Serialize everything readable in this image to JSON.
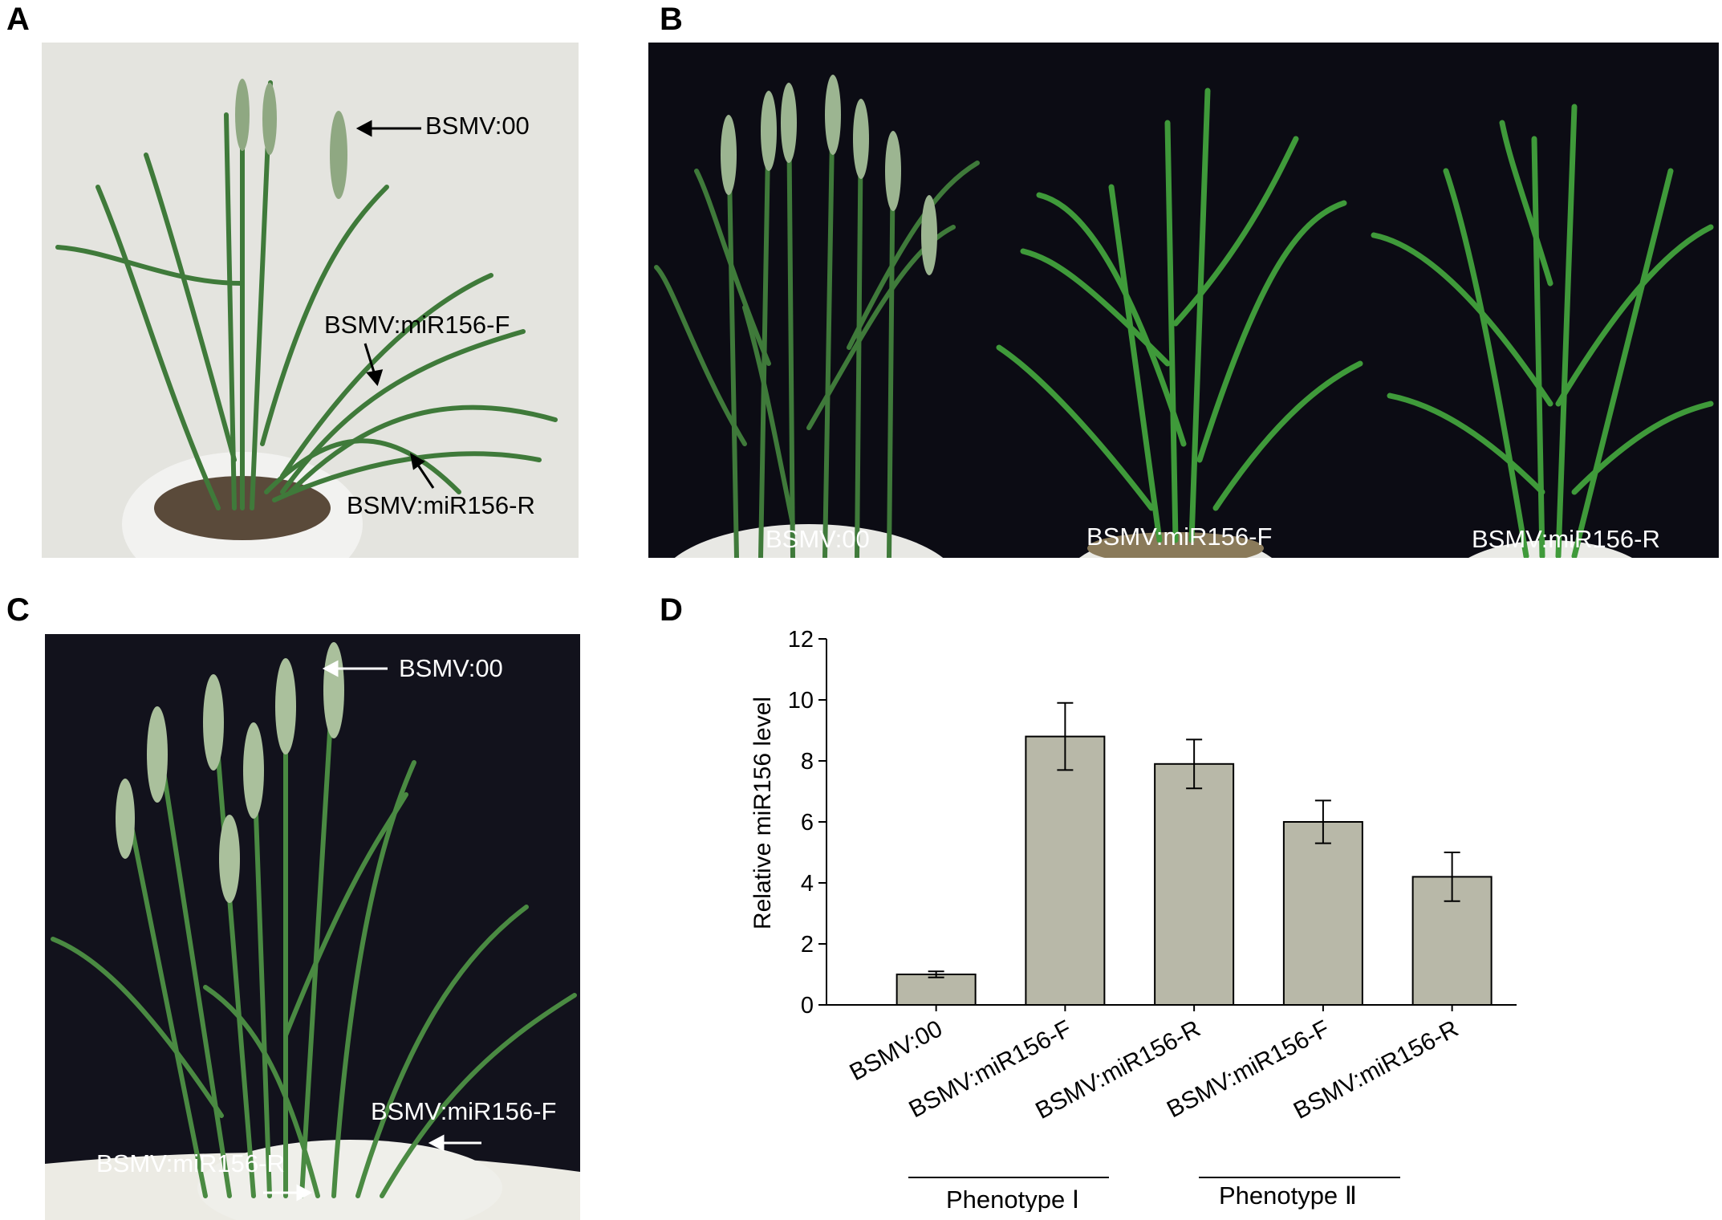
{
  "panels": {
    "a": {
      "letter": "A",
      "labels": [
        "BSMV:00",
        "BSMV:miR156-F",
        "BSMV:miR156-R"
      ]
    },
    "b": {
      "letter": "B",
      "labels": [
        "BSMV:00",
        "BSMV:miR156-F",
        "BSMV:miR156-R"
      ]
    },
    "c": {
      "letter": "C",
      "labels": [
        "BSMV:00",
        "BSMV:miR156-F",
        "BSMV:miR156-R"
      ]
    },
    "d": {
      "letter": "D",
      "groups": [
        "Phenotype Ⅰ",
        "Phenotype Ⅱ"
      ]
    }
  },
  "colors": {
    "bar_fill": "#b8b8a8",
    "light_background": "#e4e4df",
    "dark_background": "#0c0c14",
    "leaf_green": "#3f7a3a"
  },
  "chart_data": {
    "type": "bar",
    "categories": [
      "BSMV:00",
      "BSMV:miR156-F",
      "BSMV:miR156-R",
      "BSMV:miR156-F",
      "BSMV:miR156-R"
    ],
    "values": [
      1.0,
      8.8,
      7.9,
      6.0,
      4.2
    ],
    "errors": [
      0.1,
      1.1,
      0.8,
      0.7,
      0.8
    ],
    "ylabel": "Relative miR156 level",
    "xlabel": "",
    "ylim": [
      0,
      12
    ],
    "yticks": [
      0,
      2,
      4,
      6,
      8,
      10,
      12
    ],
    "grid": false,
    "legend": false
  }
}
